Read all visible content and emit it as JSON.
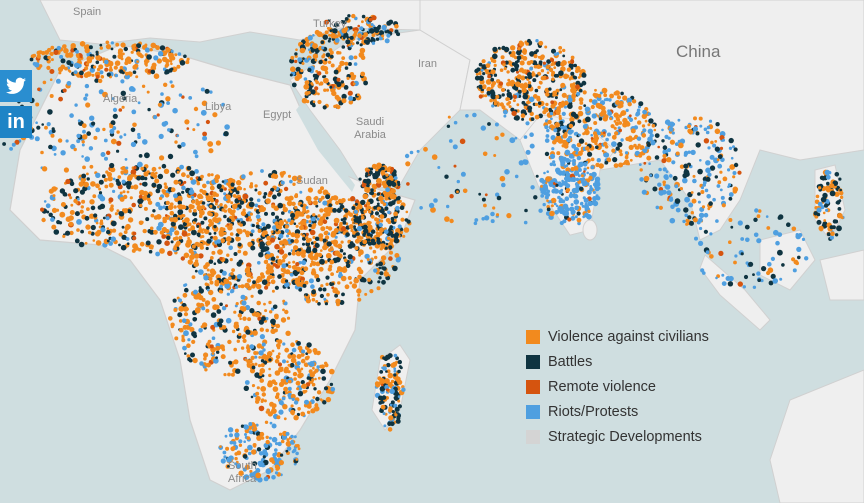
{
  "share": {
    "twitter": "twitter-icon",
    "linkedin_label": "in"
  },
  "labels": {
    "spain": "Spain",
    "turkey": "Turkey",
    "iran": "Iran",
    "china": "China",
    "algeria": "Algeria",
    "libya": "Libya",
    "egypt": "Egypt",
    "saudi": "Saudi Arabia",
    "sudan": "Sudan",
    "south_africa": "South Africa"
  },
  "legend": [
    {
      "label": "Violence against civilians",
      "color": "#f28a1e"
    },
    {
      "label": "Battles",
      "color": "#0f3441"
    },
    {
      "label": "Remote violence",
      "color": "#d5540f"
    },
    {
      "label": "Riots/Protests",
      "color": "#4f9fe0"
    },
    {
      "label": "Strategic Developments",
      "color": "#d4d4d4"
    }
  ],
  "colors": {
    "water": "#cfdee0",
    "land": "#efefef",
    "border": "#d0d0d0",
    "violence": "#f28a1e",
    "battles": "#0f3441",
    "remote": "#d5540f",
    "riots": "#4f9fe0"
  }
}
